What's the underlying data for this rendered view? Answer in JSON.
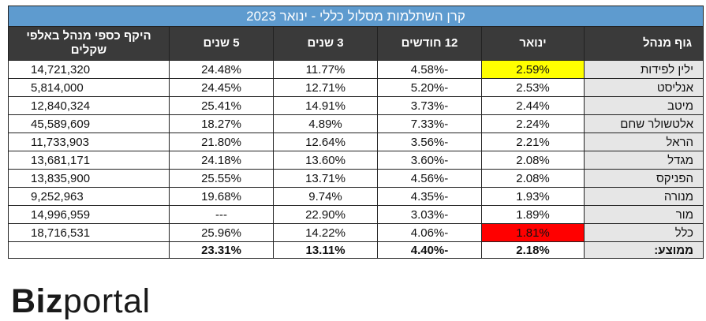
{
  "title": "קרן השתלמות מסלול כללי - ינואר 2023",
  "headers": {
    "fund": "גוף מנהל",
    "jan": "ינואר",
    "m12": "12 חודשים",
    "y3": "3 שנים",
    "y5": "5 שנים",
    "aum": "היקף כספי מנהל באלפי שקלים"
  },
  "rows": [
    {
      "fund": "ילין לפידות",
      "jan": "2.59%",
      "m12": "-4.58%",
      "y3": "11.77%",
      "y5": "24.48%",
      "aum": "14,721,320",
      "highlight": "#ffff00"
    },
    {
      "fund": "אנליסט",
      "jan": "2.53%",
      "m12": "-5.20%",
      "y3": "12.71%",
      "y5": "24.45%",
      "aum": "5,814,000"
    },
    {
      "fund": "מיטב",
      "jan": "2.44%",
      "m12": "-3.73%",
      "y3": "14.91%",
      "y5": "25.41%",
      "aum": "12,840,324"
    },
    {
      "fund": "אלטשולר שחם",
      "jan": "2.24%",
      "m12": "-7.33%",
      "y3": "4.89%",
      "y5": "18.27%",
      "aum": "45,589,609"
    },
    {
      "fund": "הראל",
      "jan": "2.21%",
      "m12": "-3.56%",
      "y3": "12.64%",
      "y5": "21.80%",
      "aum": "11,733,903"
    },
    {
      "fund": "מגדל",
      "jan": "2.08%",
      "m12": "-3.60%",
      "y3": "13.60%",
      "y5": "24.18%",
      "aum": "13,681,171"
    },
    {
      "fund": "הפניקס",
      "jan": "2.08%",
      "m12": "-4.56%",
      "y3": "13.71%",
      "y5": "25.55%",
      "aum": "13,835,900"
    },
    {
      "fund": "מנורה",
      "jan": "1.93%",
      "m12": "-4.35%",
      "y3": "9.74%",
      "y5": "19.68%",
      "aum": "9,252,963"
    },
    {
      "fund": "מור",
      "jan": "1.89%",
      "m12": "-3.03%",
      "y3": "22.90%",
      "y5": "---",
      "aum": "14,996,959"
    },
    {
      "fund": "כלל",
      "jan": "1.81%",
      "m12": "-4.06%",
      "y3": "14.22%",
      "y5": "25.96%",
      "aum": "18,716,531",
      "highlight": "#ff0000"
    }
  ],
  "average": {
    "label": "ממוצע:",
    "jan": "2.18%",
    "m12": "-4.40%",
    "y3": "13.11%",
    "y5": "23.31%",
    "aum": ""
  },
  "logo": {
    "part1": "Biz",
    "part2": "portal"
  }
}
